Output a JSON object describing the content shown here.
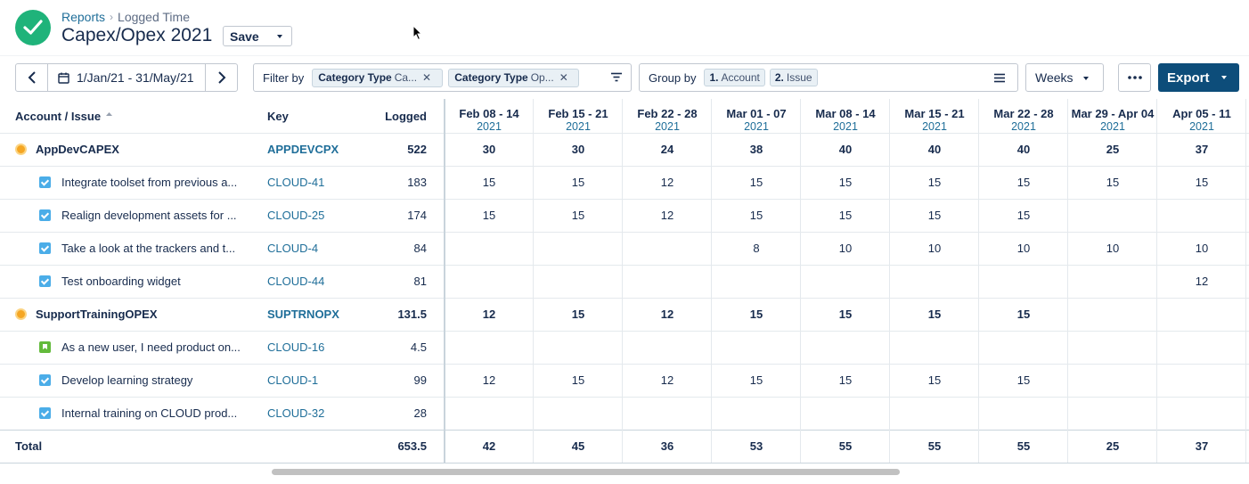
{
  "header": {
    "breadcrumb": [
      "Reports",
      "Logged Time"
    ],
    "title": "Capex/Opex 2021",
    "save_label": "Save"
  },
  "toolbar": {
    "date_range": "1/Jan/21 - 31/May/21",
    "filter_label": "Filter by",
    "filters": [
      {
        "name": "Category Type",
        "value": "Ca..."
      },
      {
        "name": "Category Type",
        "value": "Op..."
      }
    ],
    "group_label": "Group by",
    "groups": [
      {
        "num": "1.",
        "name": "Account"
      },
      {
        "num": "2.",
        "name": "Issue"
      }
    ],
    "period": "Weeks",
    "export_label": "Export"
  },
  "table": {
    "columns": {
      "account": "Account / Issue",
      "key": "Key",
      "logged": "Logged"
    },
    "weeks": [
      {
        "range": "Feb 08 - 14",
        "year": "2021"
      },
      {
        "range": "Feb 15 - 21",
        "year": "2021"
      },
      {
        "range": "Feb 22 - 28",
        "year": "2021"
      },
      {
        "range": "Mar 01 - 07",
        "year": "2021"
      },
      {
        "range": "Mar 08 - 14",
        "year": "2021"
      },
      {
        "range": "Mar 15 - 21",
        "year": "2021"
      },
      {
        "range": "Mar 22 - 28",
        "year": "2021"
      },
      {
        "range": "Mar 29 - Apr 04",
        "year": "2021"
      },
      {
        "range": "Apr 05 - 11",
        "year": "2021"
      }
    ],
    "rows": [
      {
        "type": "account",
        "name": "AppDevCAPEX",
        "key": "APPDEVCPX",
        "logged": "522",
        "cells": [
          "30",
          "30",
          "24",
          "38",
          "40",
          "40",
          "40",
          "25",
          "37"
        ]
      },
      {
        "type": "task",
        "name": "Integrate toolset from previous a...",
        "key": "CLOUD-41",
        "logged": "183",
        "cells": [
          "15",
          "15",
          "12",
          "15",
          "15",
          "15",
          "15",
          "15",
          "15"
        ]
      },
      {
        "type": "task",
        "name": "Realign development assets for ...",
        "key": "CLOUD-25",
        "logged": "174",
        "cells": [
          "15",
          "15",
          "12",
          "15",
          "15",
          "15",
          "15",
          "",
          ""
        ]
      },
      {
        "type": "task",
        "name": "Take a look at the trackers and t...",
        "key": "CLOUD-4",
        "logged": "84",
        "cells": [
          "",
          "",
          "",
          "8",
          "10",
          "10",
          "10",
          "10",
          "10"
        ]
      },
      {
        "type": "task",
        "name": "Test onboarding widget",
        "key": "CLOUD-44",
        "logged": "81",
        "cells": [
          "",
          "",
          "",
          "",
          "",
          "",
          "",
          "",
          "12"
        ]
      },
      {
        "type": "account",
        "name": "SupportTrainingOPEX",
        "key": "SUPTRNOPX",
        "logged": "131.5",
        "cells": [
          "12",
          "15",
          "12",
          "15",
          "15",
          "15",
          "15",
          "",
          ""
        ]
      },
      {
        "type": "story",
        "name": "As a new user, I need product on...",
        "key": "CLOUD-16",
        "logged": "4.5",
        "cells": [
          "",
          "",
          "",
          "",
          "",
          "",
          "",
          "",
          ""
        ]
      },
      {
        "type": "task",
        "name": "Develop learning strategy",
        "key": "CLOUD-1",
        "logged": "99",
        "cells": [
          "12",
          "15",
          "12",
          "15",
          "15",
          "15",
          "15",
          "",
          ""
        ]
      },
      {
        "type": "task",
        "name": "Internal training on CLOUD prod...",
        "key": "CLOUD-32",
        "logged": "28",
        "cells": [
          "",
          "",
          "",
          "",
          "",
          "",
          "",
          "",
          ""
        ]
      }
    ],
    "total": {
      "label": "Total",
      "logged": "653.5",
      "cells": [
        "42",
        "45",
        "36",
        "53",
        "55",
        "55",
        "55",
        "25",
        "37"
      ]
    }
  }
}
